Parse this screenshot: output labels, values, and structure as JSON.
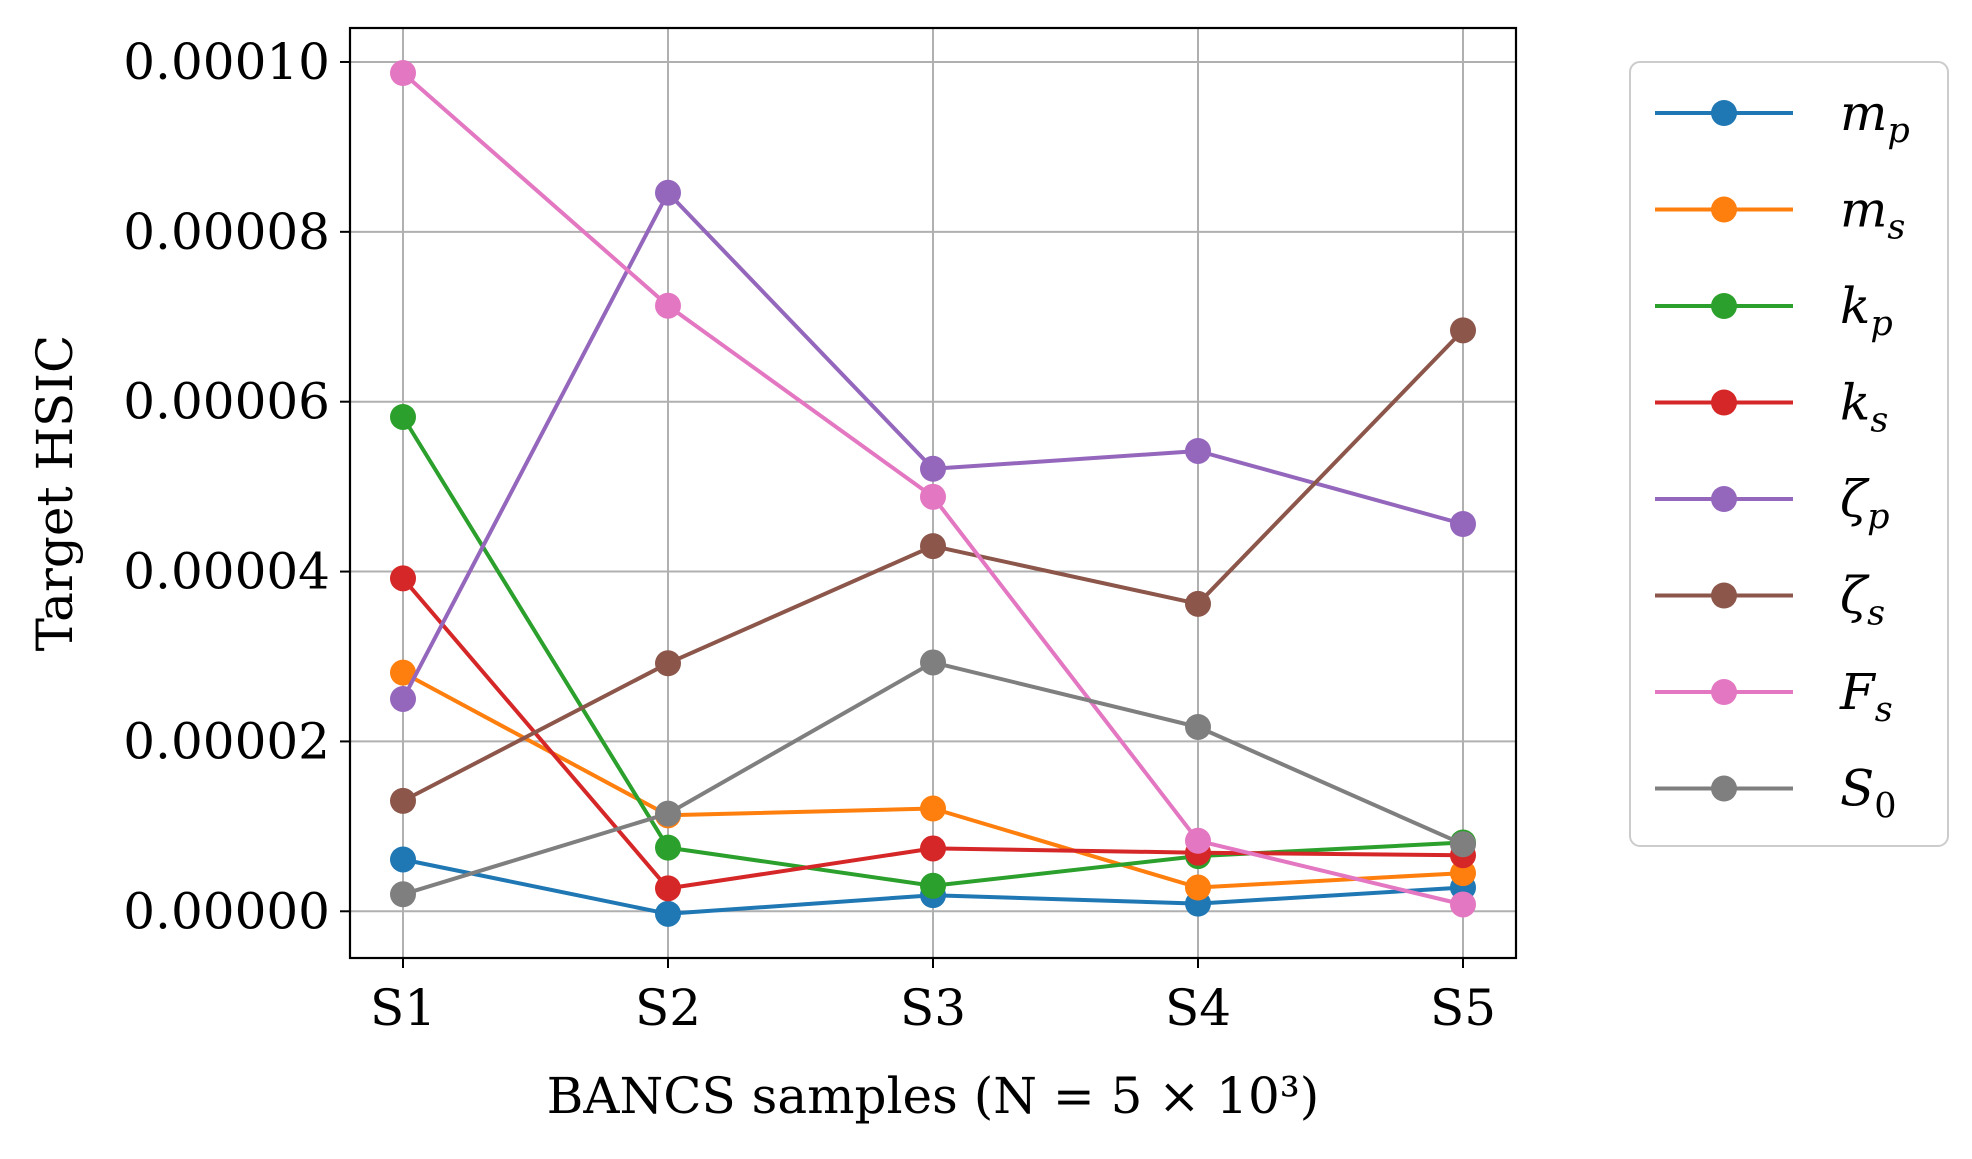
{
  "chart_data": {
    "type": "line",
    "title": "",
    "xlabel": "BANCS samples (N = 5 × 10³)",
    "ylabel": "Target HSIC",
    "categories": [
      "S1",
      "S2",
      "S3",
      "S4",
      "S5"
    ],
    "ylim": [
      -5.5e-06,
      0.000104
    ],
    "yticks": [
      "0.00000",
      "0.00002",
      "0.00004",
      "0.00006",
      "0.00008",
      "0.00010"
    ],
    "ytick_values": [
      0,
      2e-05,
      4e-05,
      6e-05,
      8e-05,
      0.0001
    ],
    "grid": true,
    "legend_position": "outside-right",
    "series": [
      {
        "name": "m_p",
        "color": "#1f77b4",
        "values": [
          6.1e-06,
          -3e-07,
          1.9e-06,
          9e-07,
          2.8e-06
        ]
      },
      {
        "name": "m_s",
        "color": "#ff7f0e",
        "values": [
          2.81e-05,
          1.13e-05,
          1.21e-05,
          2.8e-06,
          4.5e-06
        ]
      },
      {
        "name": "k_p",
        "color": "#2ca02c",
        "values": [
          5.82e-05,
          7.5e-06,
          3e-06,
          6.5e-06,
          8.1e-06
        ]
      },
      {
        "name": "k_s",
        "color": "#d62728",
        "values": [
          3.92e-05,
          2.7e-06,
          7.4e-06,
          6.9e-06,
          6.6e-06
        ]
      },
      {
        "name": "ζ_p",
        "color": "#9467bd",
        "values": [
          2.5e-05,
          8.46e-05,
          5.21e-05,
          5.42e-05,
          4.56e-05
        ]
      },
      {
        "name": "ζ_s",
        "color": "#8c564b",
        "values": [
          1.3e-05,
          2.92e-05,
          4.3e-05,
          3.62e-05,
          6.84e-05
        ]
      },
      {
        "name": "F_s",
        "color": "#e377c2",
        "values": [
          9.87e-05,
          7.13e-05,
          4.88e-05,
          8.3e-06,
          8e-07
        ]
      },
      {
        "name": "S_0",
        "color": "#7f7f7f",
        "values": [
          2e-06,
          1.15e-05,
          2.93e-05,
          2.17e-05,
          7.9e-06
        ]
      }
    ]
  }
}
